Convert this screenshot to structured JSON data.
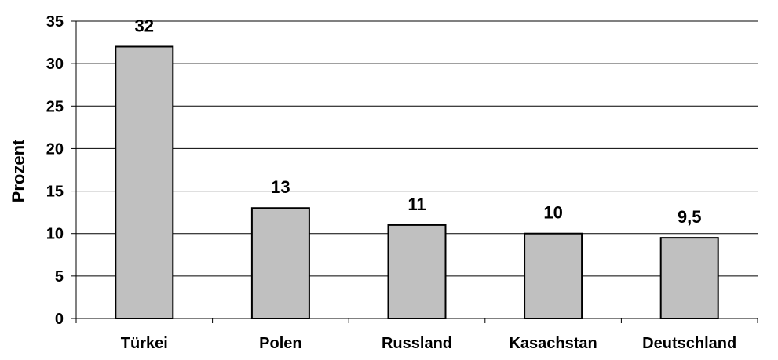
{
  "chart_data": {
    "type": "bar",
    "title": "",
    "xlabel": "",
    "ylabel": "Prozent",
    "categories": [
      "Türkei",
      "Polen",
      "Russland",
      "Kasachstan",
      "Deutschland"
    ],
    "values": [
      32,
      13,
      11,
      10,
      9.5
    ],
    "value_labels": [
      "32",
      "13",
      "11",
      "10",
      "9,5"
    ],
    "ylim": [
      0,
      35
    ],
    "y_ticks": [
      0,
      5,
      10,
      15,
      20,
      25,
      30,
      35
    ],
    "grid": true,
    "legend": "none",
    "colors": {
      "bar_fill": "#c0c0c0",
      "bar_stroke": "#000000",
      "grid": "#000000"
    }
  }
}
